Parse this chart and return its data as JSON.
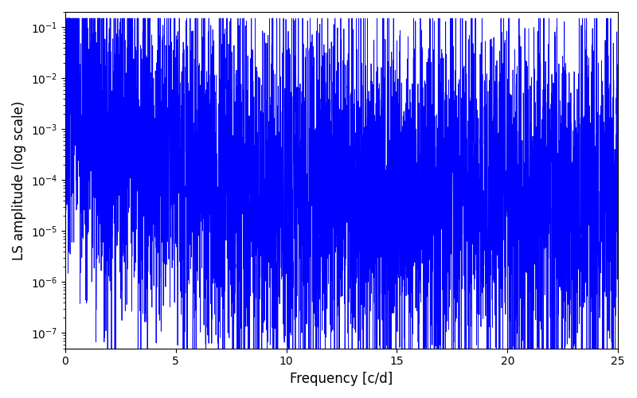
{
  "xlabel": "Frequency [c/d]",
  "ylabel": "LS amplitude (log scale)",
  "xlim": [
    0,
    25
  ],
  "ylim": [
    5e-08,
    0.2
  ],
  "color": "#0000ff",
  "linewidth": 0.6,
  "figsize": [
    8.0,
    5.0
  ],
  "dpi": 100,
  "seed": 7,
  "n_points": 5000,
  "fmax": 25.0,
  "background": "#ffffff",
  "label_fontsize": 12
}
